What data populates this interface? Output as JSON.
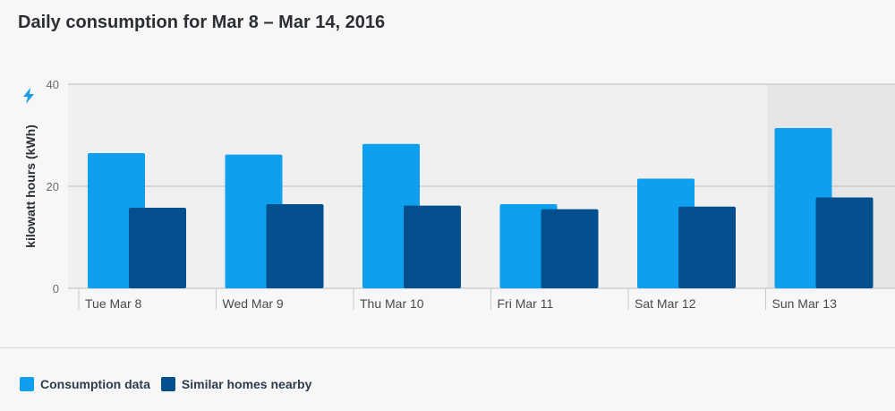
{
  "title": "Daily consumption for Mar 8 – Mar 14, 2016",
  "chart_data": {
    "type": "bar",
    "title": "Daily consumption for Mar 8 – Mar 14, 2016",
    "xlabel": "",
    "ylabel": "kilowatt hours (kWh)",
    "ylim": [
      0,
      40
    ],
    "yticks": [
      "0",
      "20",
      "40"
    ],
    "categories": [
      "Tue Mar 8",
      "Wed Mar 9",
      "Thu Mar 10",
      "Fri Mar 11",
      "Sat Mar 12",
      "Sun Mar 13"
    ],
    "series": [
      {
        "name": "Consumption data",
        "color": "#0ea0ee",
        "values": [
          26.5,
          26.2,
          28.3,
          16.5,
          21.5,
          31.4
        ]
      },
      {
        "name": "Similar homes nearby",
        "color": "#04508f",
        "values": [
          15.8,
          16.5,
          16.2,
          15.5,
          16.0,
          17.8
        ]
      }
    ],
    "highlighted_category": "Sun Mar 13",
    "grid": true,
    "legend_position": "bottom-left"
  },
  "icons": {
    "axis_icon": "lightning-bolt-icon"
  },
  "colors": {
    "consumption": "#0ea0ee",
    "similar": "#04508f",
    "plot_bg": "#f0f0f1",
    "highlight_bg": "#e6e6e7",
    "bolt": "#1a9be6"
  }
}
